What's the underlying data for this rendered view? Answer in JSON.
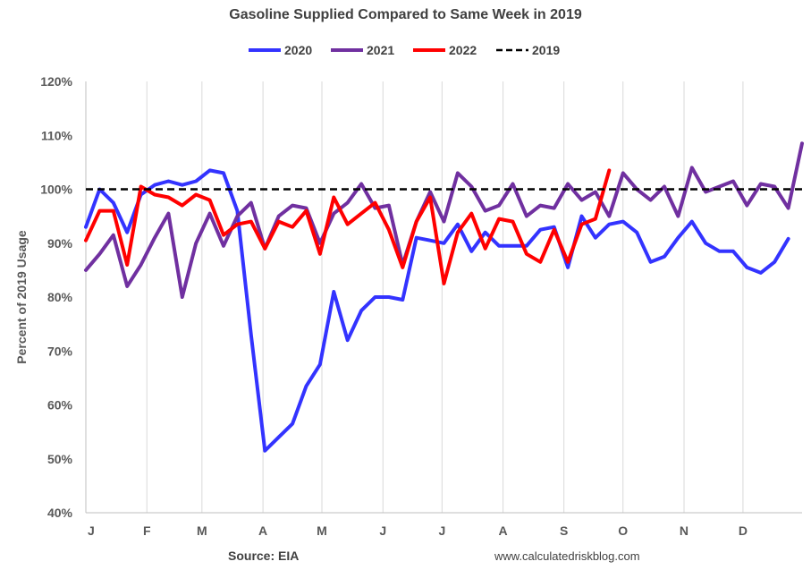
{
  "chart_data": {
    "type": "line",
    "title": "Gasoline Supplied Compared to Same Week in 2019",
    "ylabel": "Percent of 2019 Usage",
    "xlabel": "",
    "ylim": [
      40,
      120
    ],
    "yticks": [
      "40%",
      "50%",
      "60%",
      "70%",
      "80%",
      "90%",
      "100%",
      "110%",
      "120%"
    ],
    "xticks": [
      "J",
      "F",
      "M",
      "A",
      "M",
      "J",
      "J",
      "A",
      "S",
      "O",
      "N",
      "D"
    ],
    "x_range_weeks": [
      1,
      53
    ],
    "grid": "vertical month gridlines",
    "legend_placement": "top-center",
    "source": "Source: EIA",
    "watermark": "www.calculatedriskblog.com",
    "series": [
      {
        "name": "2020",
        "color": "#3333ff",
        "style": "solid",
        "values": [
          93,
          100,
          97.5,
          92,
          99,
          100.8,
          101.5,
          100.8,
          101.5,
          103.5,
          103,
          96,
          73,
          51.5,
          54,
          56.5,
          63.5,
          67.5,
          81,
          72,
          77.5,
          80,
          80,
          79.5,
          91,
          90.5,
          90,
          93.5,
          88.5,
          92,
          89.5,
          89.5,
          89.5,
          92.5,
          93,
          85.5,
          95,
          91,
          93.5,
          94,
          92,
          86.5,
          87.5,
          91,
          94,
          90,
          88.5,
          88.5,
          85.5,
          84.5,
          86.5,
          90.8
        ]
      },
      {
        "name": "2021",
        "color": "#7030a0",
        "style": "solid",
        "values": [
          85,
          88,
          91.5,
          82,
          86,
          91,
          95.5,
          80,
          90,
          95.5,
          89.5,
          95,
          97.5,
          89,
          95,
          97,
          96.5,
          90,
          95.5,
          97.5,
          101,
          96.5,
          97,
          86,
          94,
          99.5,
          94,
          103,
          100.5,
          96,
          97,
          101,
          95,
          97,
          96.5,
          101,
          98,
          99.5,
          95,
          103,
          100,
          98,
          100.5,
          95,
          104,
          99.5,
          100.5,
          101.5,
          97,
          101,
          100.5,
          96.5,
          108.5
        ]
      },
      {
        "name": "2022",
        "color": "#ff0000",
        "style": "solid",
        "values": [
          90.5,
          96,
          96,
          86,
          100.5,
          99,
          98.5,
          97,
          99,
          98,
          91.5,
          93.5,
          94,
          89,
          94,
          93,
          96,
          88,
          98.5,
          93.5,
          95.5,
          97.5,
          92.5,
          85.5,
          94,
          98.5,
          82.5,
          92,
          95.5,
          89,
          94.5,
          94,
          88,
          86.5,
          92.5,
          86.5,
          93.5,
          94.5,
          103.5
        ]
      },
      {
        "name": "2019",
        "color": "#000000",
        "style": "dashed",
        "values": [
          100,
          100
        ]
      }
    ]
  }
}
